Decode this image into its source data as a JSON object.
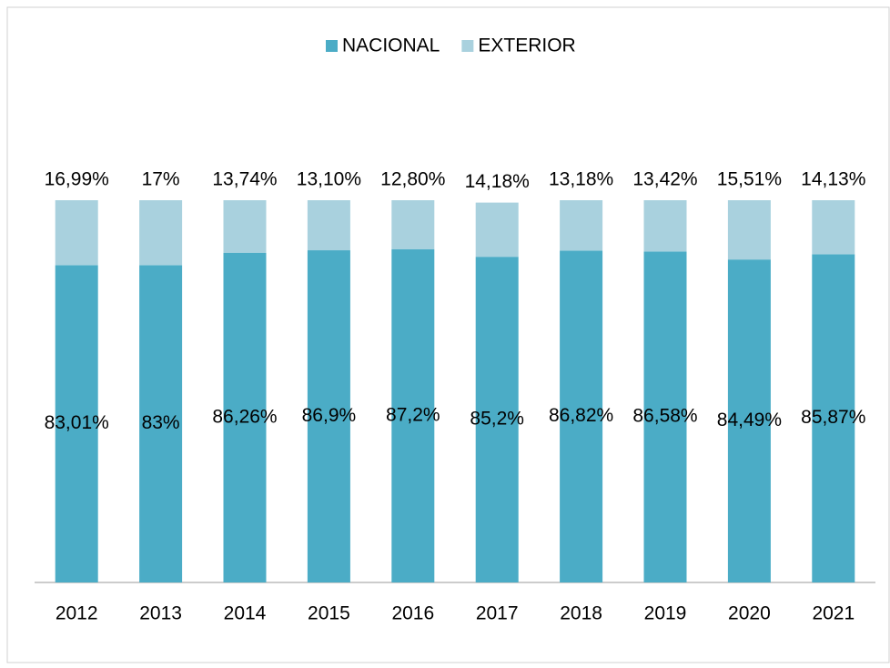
{
  "chart_data": {
    "type": "stacked_bar",
    "categories": [
      "2012",
      "2013",
      "2014",
      "2015",
      "2016",
      "2017",
      "2018",
      "2019",
      "2020",
      "2021"
    ],
    "series": [
      {
        "name": "NACIONAL",
        "color": "#4bacc6",
        "values": [
          83.01,
          83,
          86.26,
          86.9,
          87.2,
          85.2,
          86.82,
          86.58,
          84.49,
          85.87
        ],
        "value_labels": [
          "83,01%",
          "83%",
          "86,26%",
          "86,9%",
          "87,2%",
          "85,2%",
          "86,82%",
          "86,58%",
          "84,49%",
          "85,87%"
        ]
      },
      {
        "name": "EXTERIOR",
        "color": "#a9d1de",
        "values": [
          16.99,
          17,
          13.74,
          13.1,
          12.8,
          14.18,
          13.18,
          13.42,
          15.51,
          14.13
        ],
        "value_labels": [
          "16,99%",
          "17%",
          "13,74%",
          "13,10%",
          "12,80%",
          "14,18%",
          "13,18%",
          "13,42%",
          "15,51%",
          "14,13%"
        ]
      }
    ],
    "legend": "top"
  }
}
